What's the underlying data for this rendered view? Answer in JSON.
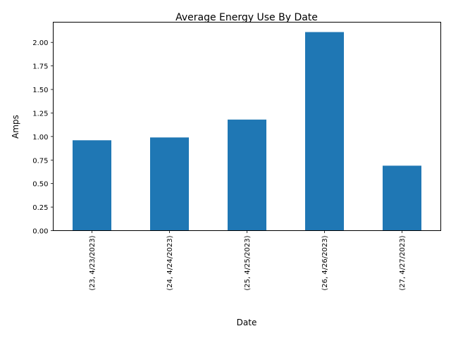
{
  "chart_data": {
    "type": "bar",
    "title": "Average Energy Use By Date",
    "xlabel": "Date",
    "ylabel": "Amps",
    "categories": [
      "(23, 4/23/2023)",
      "(24, 4/24/2023)",
      "(25, 4/25/2023)",
      "(26, 4/26/2023)",
      "(27, 4/27/2023)"
    ],
    "values": [
      0.96,
      0.99,
      1.18,
      2.11,
      0.69
    ],
    "ylim": [
      0,
      2.215
    ],
    "yticks": [
      "0.00",
      "0.25",
      "0.50",
      "0.75",
      "1.00",
      "1.25",
      "1.50",
      "1.75",
      "2.00"
    ],
    "grid": false,
    "legend": "none",
    "bar_color": "#1f77b4"
  }
}
